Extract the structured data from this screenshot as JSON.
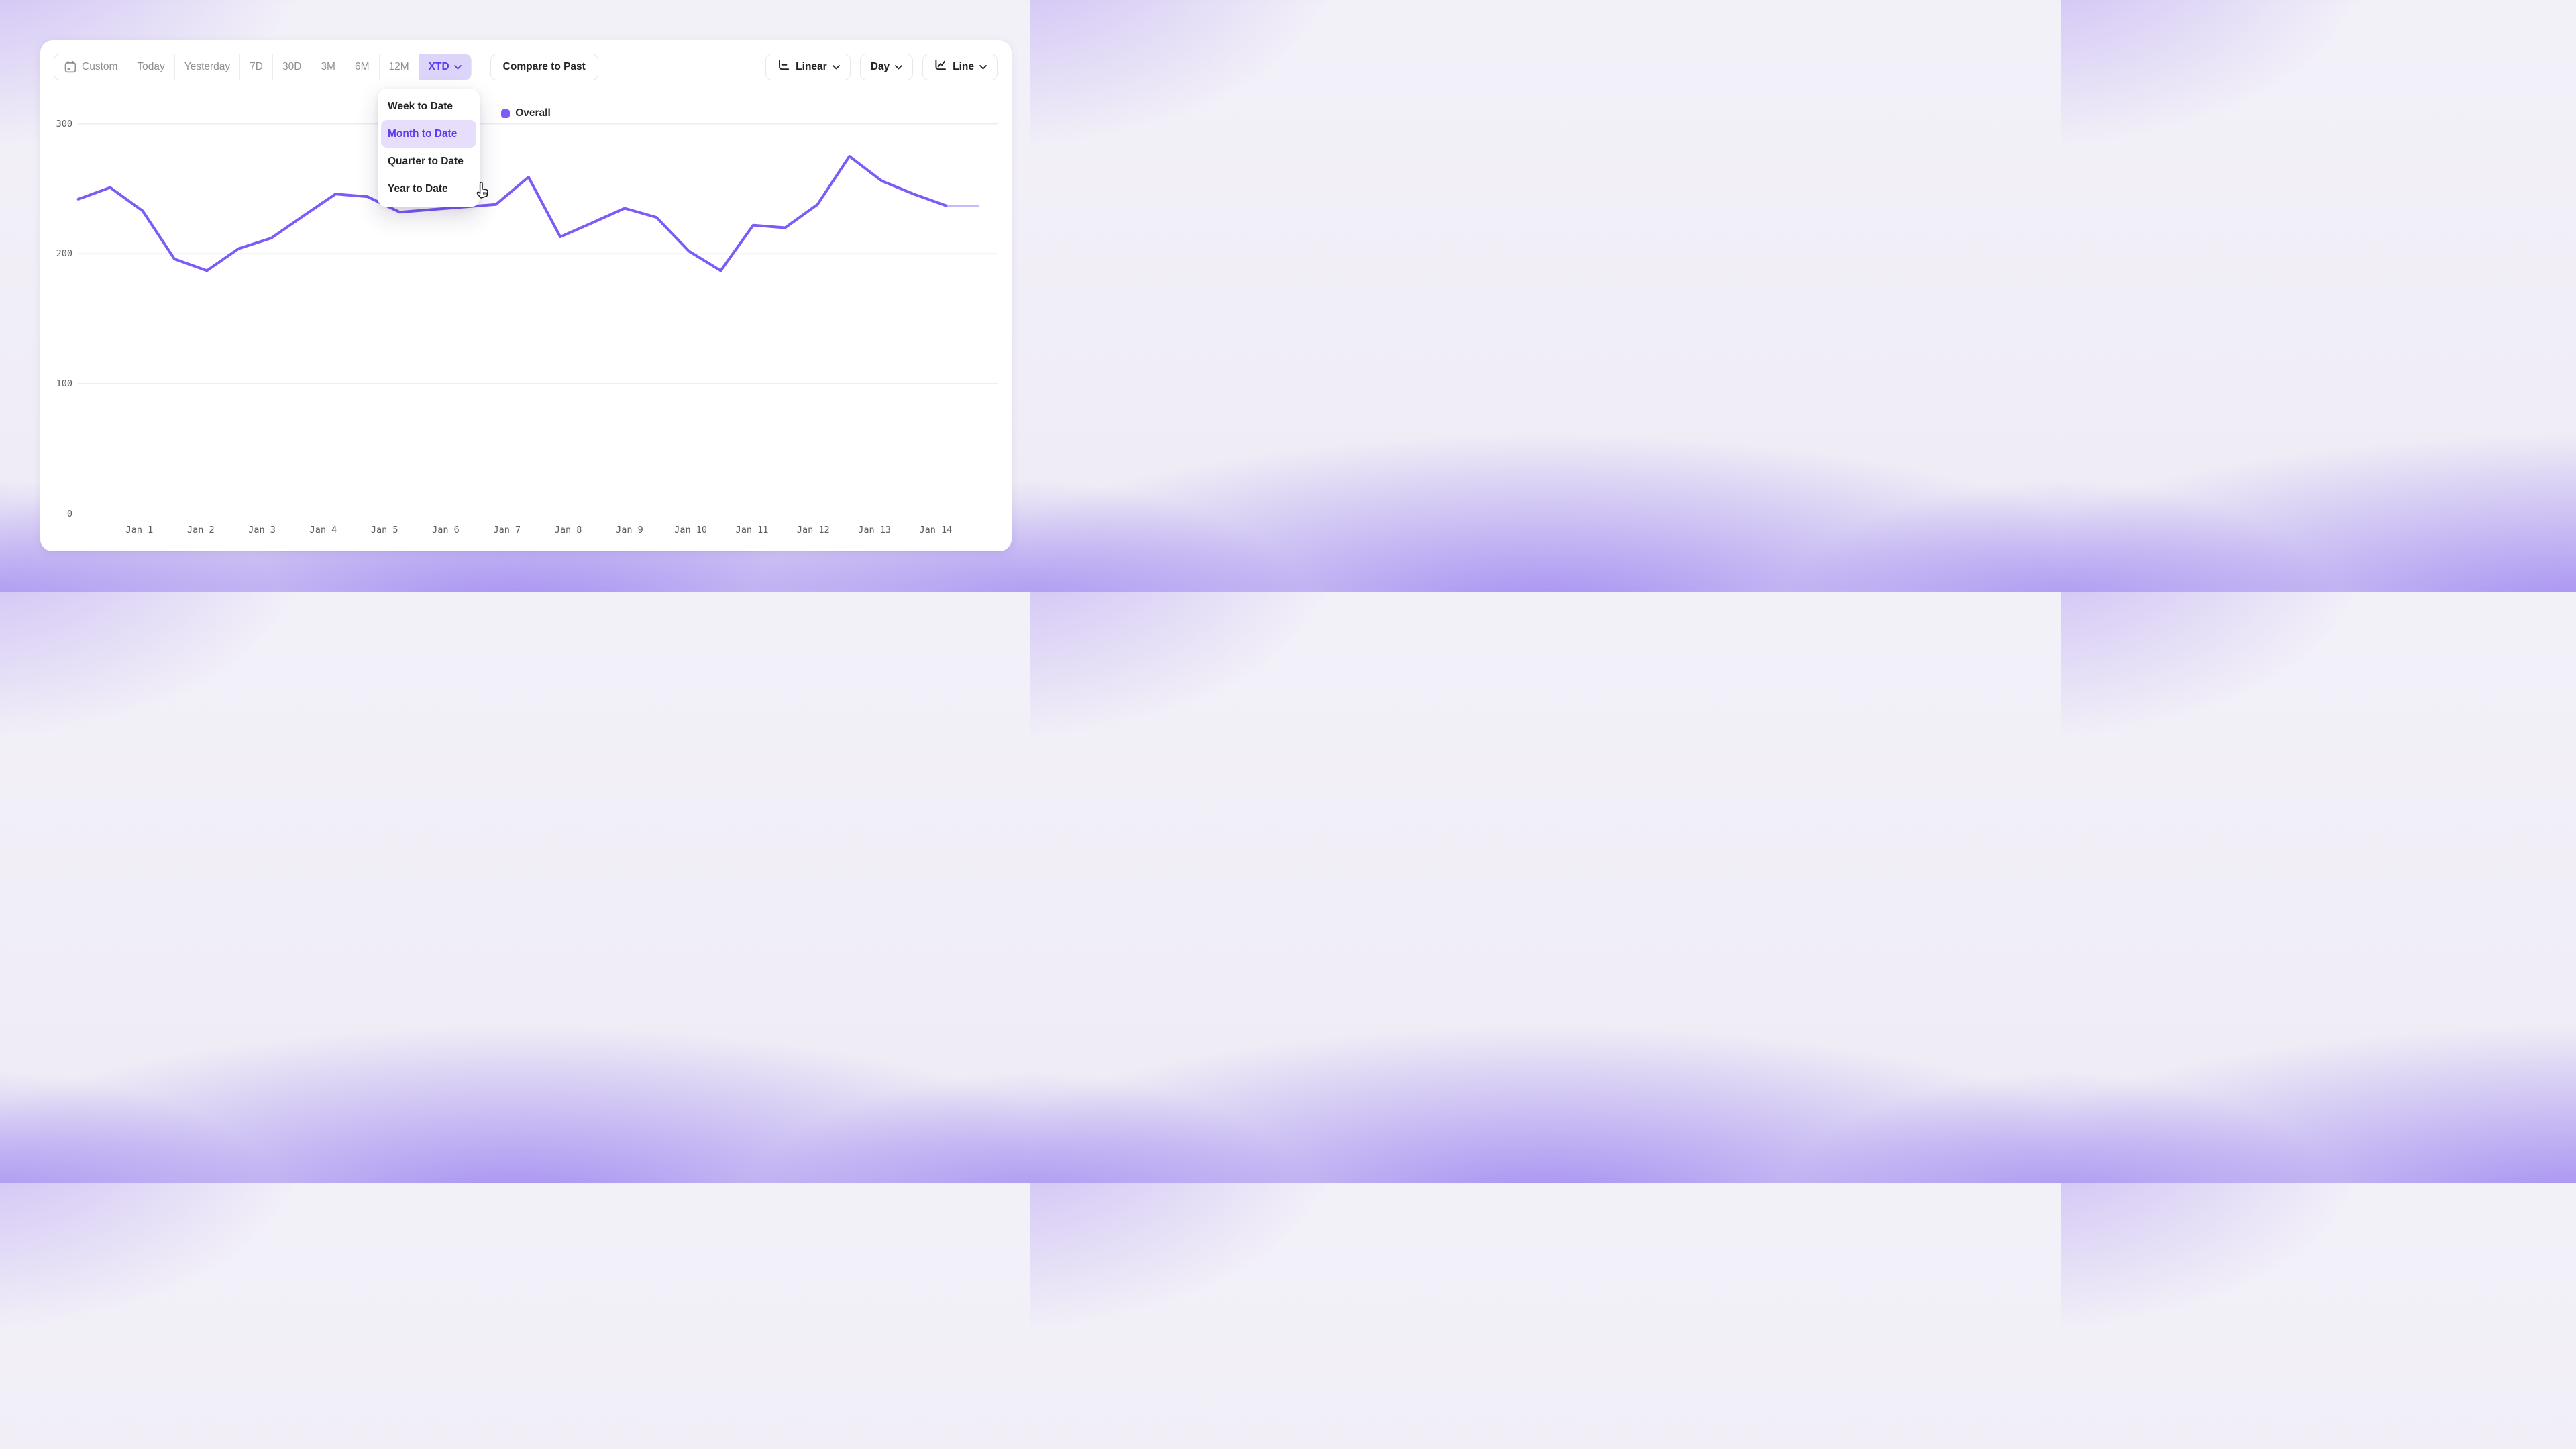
{
  "toolbar": {
    "ranges": [
      {
        "label": "Custom",
        "icon": "calendar-icon",
        "selected": false
      },
      {
        "label": "Today",
        "selected": false
      },
      {
        "label": "Yesterday",
        "selected": false
      },
      {
        "label": "7D",
        "selected": false
      },
      {
        "label": "30D",
        "selected": false
      },
      {
        "label": "3M",
        "selected": false
      },
      {
        "label": "6M",
        "selected": false
      },
      {
        "label": "12M",
        "selected": false
      },
      {
        "label": "XTD",
        "selected": true,
        "chevron": true
      }
    ],
    "compare_label": "Compare to Past",
    "scale": {
      "label": "Linear",
      "icon": "linear-scale-icon",
      "chevron": true
    },
    "granularity": {
      "label": "Day",
      "chevron": true
    },
    "chart_type": {
      "label": "Line",
      "icon": "line-chart-icon",
      "chevron": true
    }
  },
  "range_dropdown": {
    "items": [
      {
        "label": "Week to Date",
        "highlighted": false
      },
      {
        "label": "Month to Date",
        "highlighted": true
      },
      {
        "label": "Quarter to Date",
        "highlighted": false
      },
      {
        "label": "Year to Date",
        "highlighted": false
      }
    ]
  },
  "legend": {
    "label": "Overall",
    "color": "#7c5bf7"
  },
  "chart_data": {
    "type": "line",
    "title": "",
    "xlabel": "",
    "ylabel": "",
    "x_tick_labels": [
      "Jan 1",
      "Jan 2",
      "Jan 3",
      "Jan 4",
      "Jan 5",
      "Jan 6",
      "Jan 7",
      "Jan 8",
      "Jan 9",
      "Jan 10",
      "Jan 11",
      "Jan 12",
      "Jan 13",
      "Jan 14"
    ],
    "yticks": [
      0,
      100,
      200,
      300
    ],
    "ylim": [
      0,
      310
    ],
    "grid": "horizontal-only",
    "series": [
      {
        "name": "Overall",
        "color": "#7c5bf7",
        "x_days": [
          0,
          0.52,
          1.05,
          1.57,
          2.1,
          2.62,
          3.15,
          3.67,
          4.2,
          4.72,
          5.25,
          5.77,
          6.3,
          6.82,
          7.35,
          7.87,
          8.4,
          8.92,
          9.44,
          9.97,
          10.49,
          11.02,
          11.54,
          12.07,
          12.59,
          13.12,
          13.64,
          14.17,
          14.69
        ],
        "values": [
          242,
          251,
          233,
          196,
          187,
          204,
          212,
          229,
          246,
          244,
          232,
          234,
          236,
          238,
          259,
          213,
          224,
          235,
          228,
          202,
          187,
          222,
          220,
          238,
          275,
          256,
          246,
          237,
          237
        ],
        "projected_tail_points": 1
      }
    ]
  },
  "colors": {
    "accent": "#5b3bf2",
    "accent_bg": "#ddd4f9",
    "line": "#7c5bf7",
    "gridline": "#ebebee",
    "axis_text": "#5c5c61",
    "muted_text": "#8f8f94",
    "dark_text": "#232327",
    "dropdown_highlight_bg": "#e6defb",
    "dropdown_highlight_text": "#5f3ef2"
  }
}
